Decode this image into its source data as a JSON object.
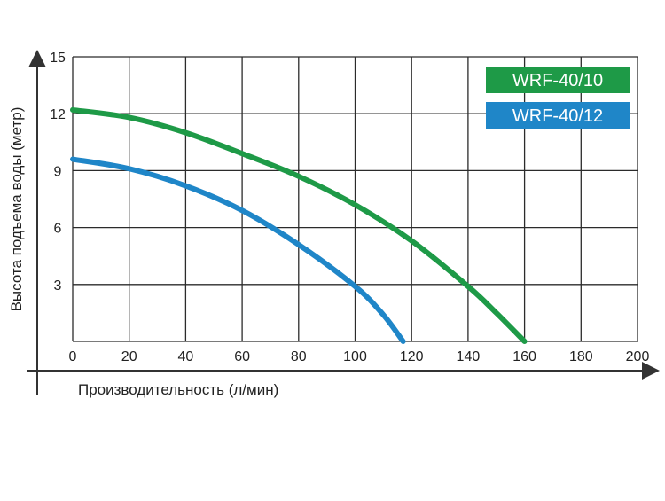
{
  "chart_data": {
    "type": "line",
    "xlabel": "Производительность (л/мин)",
    "ylabel": "Высота подъема воды (метр)",
    "xlim": [
      0,
      200
    ],
    "ylim": [
      0,
      15
    ],
    "xticks": [
      0,
      20,
      40,
      60,
      80,
      100,
      120,
      140,
      160,
      180,
      200
    ],
    "yticks": [
      3,
      6,
      9,
      12,
      15
    ],
    "grid": true,
    "legend_position": "top-right",
    "series": [
      {
        "name": "WRF-40/10",
        "color": "#1e9a47",
        "x": [
          0,
          20,
          40,
          60,
          80,
          100,
          120,
          140,
          150,
          160
        ],
        "y": [
          12.2,
          11.8,
          11.0,
          9.9,
          8.7,
          7.2,
          5.3,
          2.9,
          1.5,
          0
        ]
      },
      {
        "name": "WRF-40/12",
        "color": "#1f86c8",
        "x": [
          0,
          20,
          40,
          60,
          80,
          100,
          110,
          117
        ],
        "y": [
          9.6,
          9.1,
          8.2,
          6.9,
          5.1,
          2.9,
          1.4,
          0
        ]
      }
    ]
  }
}
